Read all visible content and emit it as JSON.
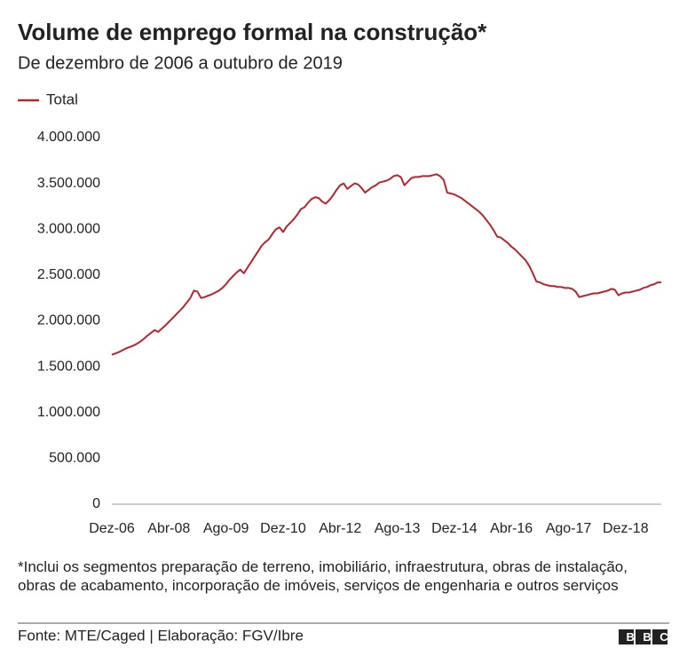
{
  "chart_data": {
    "type": "line",
    "title": "Volume de emprego formal na construção*",
    "subtitle": "De dezembro de 2006 a outubro de 2019",
    "footnote": "*Inclui os segmentos preparação de terreno, imobiliário, infraestrutura, obras de instalação, obras de acabamento, incorporação de imóveis, serviços de engenharia e outros serviços",
    "source": "Fonte: MTE/Caged | Elaboração: FGV/Ibre",
    "logo": "BBC",
    "legend": "top-left",
    "grid": false,
    "categories": [
      "Dez-06",
      null,
      null,
      null,
      null,
      null,
      null,
      null,
      null,
      null,
      null,
      null,
      null,
      null,
      null,
      null,
      "Abr-08",
      null,
      null,
      null,
      null,
      null,
      null,
      null,
      null,
      null,
      null,
      null,
      null,
      null,
      null,
      null,
      "Ago-09",
      null,
      null,
      null,
      null,
      null,
      null,
      null,
      null,
      null,
      null,
      null,
      null,
      null,
      null,
      null,
      "Dez-10",
      null,
      null,
      null,
      null,
      null,
      null,
      null,
      null,
      null,
      null,
      null,
      null,
      null,
      null,
      null,
      "Abr-12",
      null,
      null,
      null,
      null,
      null,
      null,
      null,
      null,
      null,
      null,
      null,
      null,
      null,
      null,
      null,
      "Ago-13",
      null,
      null,
      null,
      null,
      null,
      null,
      null,
      null,
      null,
      null,
      null,
      null,
      null,
      null,
      null,
      "Dez-14",
      null,
      null,
      null,
      null,
      null,
      null,
      null,
      null,
      null,
      null,
      null,
      null,
      null,
      null,
      null,
      "Abr-16",
      null,
      null,
      null,
      null,
      null,
      null,
      null,
      null,
      null,
      null,
      null,
      null,
      null,
      null,
      null,
      "Ago-17",
      null,
      null,
      null,
      null,
      null,
      null,
      null,
      null,
      null,
      null,
      null,
      null,
      null,
      null,
      null,
      "Dez-18",
      null,
      null,
      null,
      null,
      null,
      null,
      null,
      null,
      null,
      null
    ],
    "series": [
      {
        "name": "Total",
        "color": "#b3262e",
        "values": [
          1630000,
          1645000,
          1660000,
          1680000,
          1700000,
          1715000,
          1730000,
          1750000,
          1775000,
          1805000,
          1840000,
          1870000,
          1900000,
          1880000,
          1915000,
          1950000,
          1990000,
          2030000,
          2070000,
          2110000,
          2150000,
          2200000,
          2250000,
          2330000,
          2320000,
          2250000,
          2260000,
          2275000,
          2290000,
          2310000,
          2330000,
          2360000,
          2400000,
          2450000,
          2490000,
          2530000,
          2560000,
          2520000,
          2580000,
          2640000,
          2700000,
          2760000,
          2820000,
          2860000,
          2890000,
          2950000,
          3000000,
          3020000,
          2970000,
          3030000,
          3070000,
          3110000,
          3160000,
          3220000,
          3240000,
          3290000,
          3330000,
          3350000,
          3340000,
          3300000,
          3280000,
          3320000,
          3370000,
          3430000,
          3480000,
          3500000,
          3440000,
          3470000,
          3500000,
          3490000,
          3450000,
          3400000,
          3430000,
          3460000,
          3480000,
          3510000,
          3520000,
          3530000,
          3550000,
          3580000,
          3590000,
          3570000,
          3480000,
          3520000,
          3560000,
          3570000,
          3570000,
          3580000,
          3580000,
          3580000,
          3590000,
          3600000,
          3580000,
          3540000,
          3400000,
          3390000,
          3380000,
          3360000,
          3340000,
          3310000,
          3280000,
          3250000,
          3220000,
          3190000,
          3150000,
          3100000,
          3050000,
          2990000,
          2920000,
          2910000,
          2880000,
          2850000,
          2810000,
          2780000,
          2740000,
          2700000,
          2660000,
          2600000,
          2520000,
          2430000,
          2420000,
          2400000,
          2390000,
          2380000,
          2380000,
          2370000,
          2370000,
          2360000,
          2360000,
          2350000,
          2320000,
          2260000,
          2270000,
          2280000,
          2290000,
          2300000,
          2300000,
          2310000,
          2320000,
          2330000,
          2350000,
          2340000,
          2280000,
          2300000,
          2310000,
          2310000,
          2320000,
          2330000,
          2340000,
          2360000,
          2370000,
          2390000,
          2400000,
          2420000,
          2420000
        ]
      }
    ],
    "ylim": [
      0,
      4000000
    ],
    "yticks": [
      0,
      {
        "value": 500000,
        "label": "500.000"
      },
      {
        "value": 1000000,
        "label": "1.000.000"
      },
      {
        "value": 1500000,
        "label": "1.500.000"
      },
      {
        "value": 2000000,
        "label": "2.000.000"
      },
      {
        "value": 2500000,
        "label": "2.500.000"
      },
      {
        "value": 3000000,
        "label": "3.000.000"
      },
      {
        "value": 3500000,
        "label": "3.500.000"
      },
      {
        "value": 4000000,
        "label": "4.000.000"
      }
    ]
  }
}
